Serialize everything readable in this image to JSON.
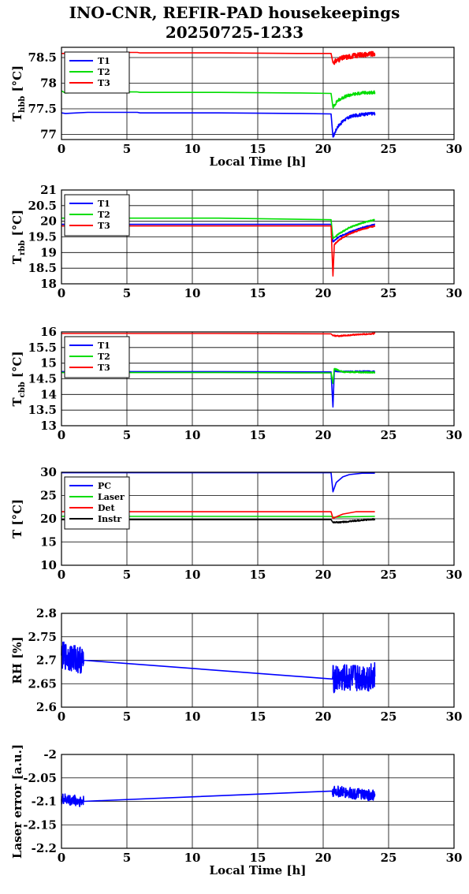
{
  "title": "INO-CNR, REFIR-PAD housekeepings",
  "subtitle": "20250725-1233",
  "colors": {
    "blue": "#0000ff",
    "green": "#00dd00",
    "red": "#ff0000",
    "black": "#000000"
  },
  "chart_data": [
    {
      "type": "line",
      "ylabel_main": "T",
      "ylabel_sub": "hbb",
      "ylabel_unit": "[°C]",
      "xlabel": "Local Time [h]",
      "xlim": [
        0,
        30
      ],
      "ylim": [
        76.9,
        78.7
      ],
      "xticks": [
        0,
        5,
        10,
        15,
        20,
        25,
        30
      ],
      "yticks": [
        77,
        77.5,
        78,
        78.5
      ],
      "ytick_labels": [
        "77",
        "77.5",
        "78",
        "78.5"
      ],
      "grid": true,
      "legend": "top-left",
      "series": [
        {
          "name": "T1",
          "color": "#0000ff",
          "x": [
            0,
            0.3,
            2,
            5.8,
            6,
            12,
            18,
            20.6,
            20.75,
            21.1,
            21.6,
            22.2,
            23,
            23.95
          ],
          "y": [
            77.42,
            77.41,
            77.43,
            77.43,
            77.42,
            77.42,
            77.41,
            77.4,
            76.95,
            77.15,
            77.28,
            77.36,
            77.39,
            77.41
          ],
          "noise": {
            "from": 20.75,
            "amp": 0.03
          }
        },
        {
          "name": "T2",
          "color": "#00dd00",
          "x": [
            0,
            0.3,
            2,
            5.8,
            6,
            12,
            18,
            20.6,
            20.75,
            21.1,
            21.6,
            22.2,
            23,
            23.95
          ],
          "y": [
            77.85,
            77.81,
            77.83,
            77.83,
            77.82,
            77.82,
            77.81,
            77.8,
            77.53,
            77.66,
            77.73,
            77.78,
            77.81,
            77.82
          ],
          "noise": {
            "from": 20.75,
            "amp": 0.03
          }
        },
        {
          "name": "T3",
          "color": "#ff0000",
          "x": [
            0,
            0.3,
            2,
            5.8,
            6,
            12,
            18,
            20.6,
            20.75,
            21.1,
            21.6,
            22.2,
            23,
            23.95
          ],
          "y": [
            78.58,
            78.58,
            78.6,
            78.6,
            78.59,
            78.59,
            78.58,
            78.58,
            78.4,
            78.45,
            78.5,
            78.53,
            78.56,
            78.57
          ],
          "noise": {
            "from": 20.75,
            "amp": 0.05
          }
        }
      ]
    },
    {
      "type": "line",
      "ylabel_main": "T",
      "ylabel_sub": "rbb",
      "ylabel_unit": "[°C]",
      "xlabel": "",
      "xlim": [
        0,
        30
      ],
      "ylim": [
        18,
        21
      ],
      "xticks": [
        0,
        5,
        10,
        15,
        20,
        25,
        30
      ],
      "yticks": [
        18,
        18.5,
        19,
        19.5,
        20,
        20.5,
        21
      ],
      "ytick_labels": [
        "18",
        "18.5",
        "19",
        "19.5",
        "20",
        "20.5",
        "21"
      ],
      "grid": true,
      "legend": "top-left",
      "series": [
        {
          "name": "T1",
          "color": "#0000ff",
          "x": [
            0,
            12,
            20.6,
            20.75,
            21.2,
            22,
            23,
            23.95
          ],
          "y": [
            19.9,
            19.9,
            19.9,
            19.35,
            19.5,
            19.65,
            19.8,
            19.9
          ],
          "noise": {
            "from": 20.75,
            "amp": 0.02
          }
        },
        {
          "name": "T2",
          "color": "#00dd00",
          "x": [
            0,
            12,
            20.6,
            20.75,
            21.2,
            22,
            23,
            23.95
          ],
          "y": [
            20.1,
            20.1,
            20.05,
            19.45,
            19.6,
            19.8,
            19.95,
            20.05
          ],
          "noise": {
            "from": 20.75,
            "amp": 0.02
          }
        },
        {
          "name": "T3",
          "color": "#ff0000",
          "x": [
            0,
            12,
            20.6,
            20.75,
            20.85,
            21.2,
            22,
            23,
            23.95
          ],
          "y": [
            19.85,
            19.85,
            19.85,
            18.25,
            19.25,
            19.4,
            19.6,
            19.75,
            19.85
          ],
          "noise": {
            "from": 20.85,
            "amp": 0.02
          }
        }
      ]
    },
    {
      "type": "line",
      "ylabel_main": "T",
      "ylabel_sub": "cbb",
      "ylabel_unit": "[°C]",
      "xlabel": "",
      "xlim": [
        0,
        30
      ],
      "ylim": [
        13,
        16
      ],
      "xticks": [
        0,
        5,
        10,
        15,
        20,
        25,
        30
      ],
      "yticks": [
        13,
        13.5,
        14,
        14.5,
        15,
        15.5,
        16
      ],
      "ytick_labels": [
        "13",
        "13.5",
        "14",
        "14.5",
        "15",
        "15.5",
        "16"
      ],
      "grid": true,
      "legend": "top-left",
      "series": [
        {
          "name": "T1",
          "color": "#0000ff",
          "x": [
            0,
            12,
            20.6,
            20.75,
            20.85,
            21.5,
            23,
            23.95
          ],
          "y": [
            14.73,
            14.73,
            14.72,
            13.6,
            14.75,
            14.73,
            14.74,
            14.73
          ],
          "noise": {
            "from": 20.85,
            "amp": 0.02
          }
        },
        {
          "name": "T2",
          "color": "#00dd00",
          "x": [
            0,
            12,
            20.6,
            20.75,
            20.85,
            21.5,
            23,
            23.95
          ],
          "y": [
            14.7,
            14.7,
            14.69,
            14.35,
            14.82,
            14.72,
            14.71,
            14.7
          ],
          "noise": {
            "from": 20.85,
            "amp": 0.02
          }
        },
        {
          "name": "T3",
          "color": "#ff0000",
          "x": [
            0,
            12,
            20.6,
            20.75,
            21.2,
            22.5,
            23.95
          ],
          "y": [
            15.95,
            15.95,
            15.94,
            15.88,
            15.87,
            15.91,
            15.95
          ],
          "noise": {
            "from": 20.75,
            "amp": 0.02
          }
        }
      ]
    },
    {
      "type": "line",
      "ylabel_main": "T [°C]",
      "ylabel_sub": "",
      "ylabel_unit": "",
      "xlabel": "",
      "xlim": [
        0,
        30
      ],
      "ylim": [
        10,
        30
      ],
      "xticks": [
        0,
        5,
        10,
        15,
        20,
        25,
        30
      ],
      "yticks": [
        10,
        15,
        20,
        25,
        30
      ],
      "ytick_labels": [
        "10",
        "15",
        "20",
        "25",
        "30"
      ],
      "grid": true,
      "legend": "top-left",
      "series": [
        {
          "name": "PC",
          "color": "#0000ff",
          "x": [
            0,
            20.6,
            20.75,
            21,
            21.5,
            22,
            23,
            23.95
          ],
          "y": [
            29.9,
            29.9,
            25.8,
            27.8,
            29.0,
            29.5,
            29.8,
            29.8
          ],
          "noise": null
        },
        {
          "name": "Laser",
          "color": "#00dd00",
          "x": [
            0,
            20.6,
            20.75,
            21.5,
            23.95
          ],
          "y": [
            20.5,
            20.5,
            20.3,
            20.4,
            20.5
          ],
          "noise": null
        },
        {
          "name": "Det",
          "color": "#ff0000",
          "x": [
            0,
            20.6,
            20.75,
            21.5,
            22.5,
            23.95
          ],
          "y": [
            21.5,
            21.5,
            20.1,
            21.0,
            21.5,
            21.5
          ],
          "noise": null
        },
        {
          "name": "Instr",
          "color": "#000000",
          "x": [
            0,
            20.6,
            20.75,
            21.5,
            23,
            23.95
          ],
          "y": [
            19.8,
            19.8,
            19.2,
            19.3,
            19.7,
            19.9
          ],
          "noise": {
            "from": 20.75,
            "amp": 0.15
          }
        }
      ]
    },
    {
      "type": "line",
      "ylabel_main": "RH [%]",
      "ylabel_sub": "",
      "ylabel_unit": "",
      "xlabel": "",
      "xlim": [
        0,
        30
      ],
      "ylim": [
        2.6,
        2.8
      ],
      "xticks": [
        0,
        5,
        10,
        15,
        20,
        25,
        30
      ],
      "yticks": [
        2.6,
        2.65,
        2.7,
        2.75,
        2.8
      ],
      "ytick_labels": [
        "2.6",
        "2.65",
        "2.7",
        "2.75",
        "2.8"
      ],
      "grid": true,
      "legend": "none",
      "series": [
        {
          "name": "",
          "color": "#0000ff",
          "x": [
            0,
            1.7,
            20.7,
            23.95
          ],
          "y": [
            2.71,
            2.7,
            2.66,
            2.665
          ],
          "noise": {
            "from": 0,
            "to": 1.7,
            "from2": 20.7,
            "amp": 0.03
          }
        }
      ]
    },
    {
      "type": "line",
      "ylabel_main": "Laser error [a.u.]",
      "ylabel_sub": "",
      "ylabel_unit": "",
      "xlabel": "Local Time [h]",
      "xlim": [
        0,
        30
      ],
      "ylim": [
        -2.2,
        -2
      ],
      "xticks": [
        0,
        5,
        10,
        15,
        20,
        25,
        30
      ],
      "yticks": [
        -2.2,
        -2.15,
        -2.1,
        -2.05,
        -2
      ],
      "ytick_labels": [
        "-2.2",
        "-2.15",
        "-2.1",
        "-2.05",
        "-2"
      ],
      "grid": true,
      "legend": "none",
      "series": [
        {
          "name": "",
          "color": "#0000ff",
          "x": [
            0,
            1.7,
            20.7,
            23.95
          ],
          "y": [
            -2.095,
            -2.1,
            -2.078,
            -2.088
          ],
          "noise": {
            "from": 0,
            "to": 1.7,
            "from2": 20.7,
            "amp": 0.012
          }
        }
      ]
    }
  ]
}
